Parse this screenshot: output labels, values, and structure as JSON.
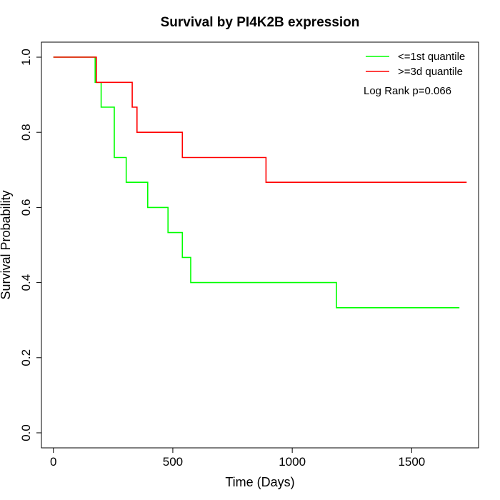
{
  "chart_data": {
    "type": "line",
    "title": "Survival by PI4K2B expression",
    "xlabel": "Time (Days)",
    "ylabel": "Survival Probability",
    "xlim": [
      -50,
      1780
    ],
    "ylim": [
      -0.04,
      1.04
    ],
    "xticks": [
      0,
      500,
      1000,
      1500
    ],
    "yticks": [
      0.0,
      0.2,
      0.4,
      0.6,
      0.8,
      1.0
    ],
    "xtick_labels": [
      "0",
      "500",
      "1000",
      "1500"
    ],
    "ytick_labels": [
      "0.0",
      "0.2",
      "0.4",
      "0.6",
      "0.8",
      "1.0"
    ],
    "grid": false,
    "legend_position": "top-right",
    "annotation": "Log Rank p=0.066",
    "series": [
      {
        "name": "<=1st quantile",
        "color": "#00ff00",
        "step": true,
        "x": [
          0,
          175,
          200,
          255,
          305,
          395,
          480,
          540,
          575,
          1185,
          1700
        ],
        "y": [
          1.0,
          0.933,
          0.867,
          0.733,
          0.667,
          0.6,
          0.533,
          0.467,
          0.4,
          0.333,
          0.333
        ]
      },
      {
        "name": ">=3d quantile",
        "color": "#ff0000",
        "step": true,
        "x": [
          0,
          180,
          330,
          350,
          540,
          890,
          1730
        ],
        "y": [
          1.0,
          0.933,
          0.867,
          0.8,
          0.733,
          0.667,
          0.667
        ]
      }
    ]
  }
}
